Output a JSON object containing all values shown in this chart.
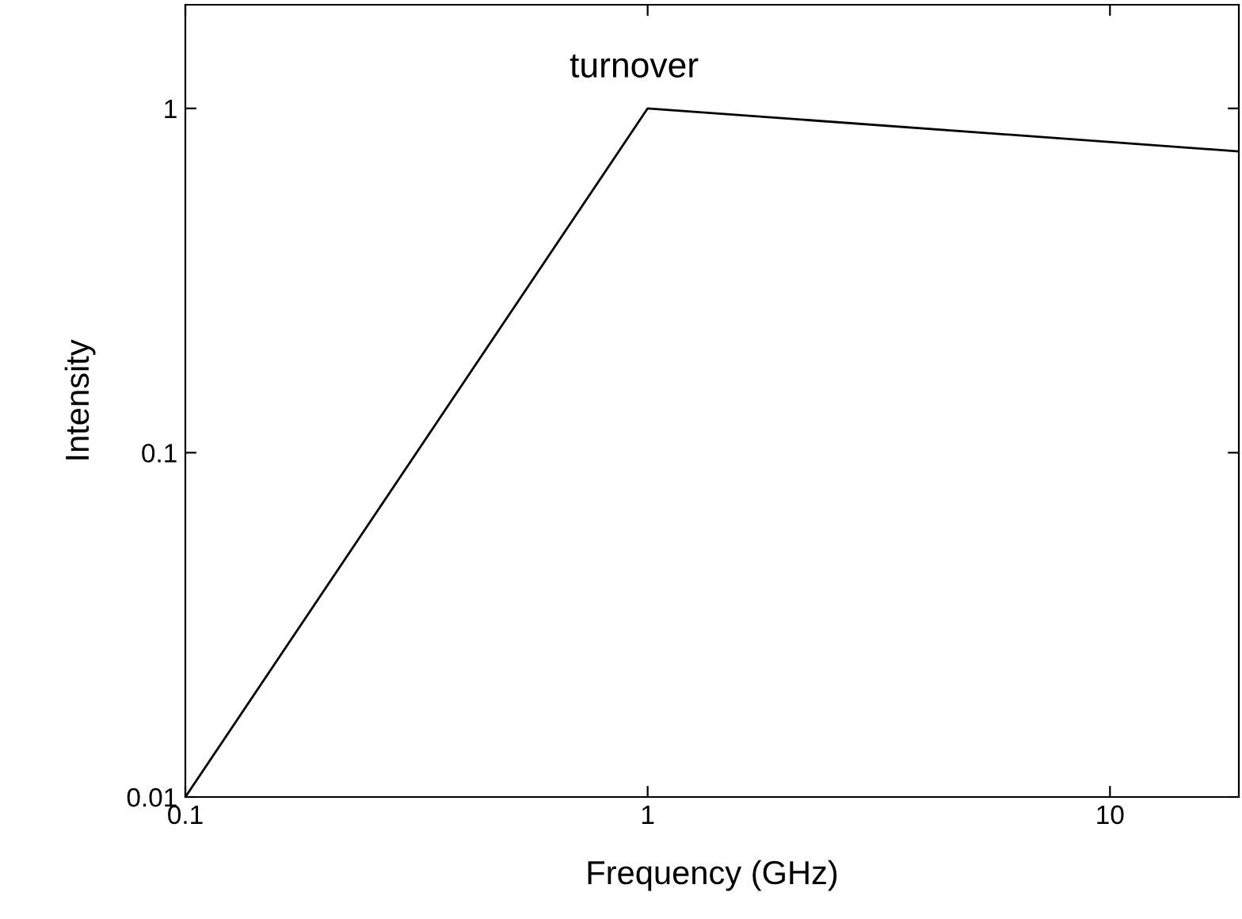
{
  "chart_data": {
    "type": "line",
    "xlabel": "Frequency (GHz)",
    "ylabel": "Intensity",
    "log": "xy",
    "grid": false,
    "legend": false,
    "marker": "none",
    "line_style": "solid",
    "x": [
      0.1,
      1,
      19
    ],
    "series": [
      {
        "color": "#000000",
        "values": [
          0.01,
          1,
          0.75
        ]
      }
    ],
    "xlim": [
      0.1,
      19
    ],
    "ylim": [
      0.01,
      2
    ],
    "xticks": [
      0.1,
      1,
      10
    ],
    "yticks": [
      0.01,
      0.1,
      1
    ],
    "annotations": [
      "turnover"
    ]
  }
}
